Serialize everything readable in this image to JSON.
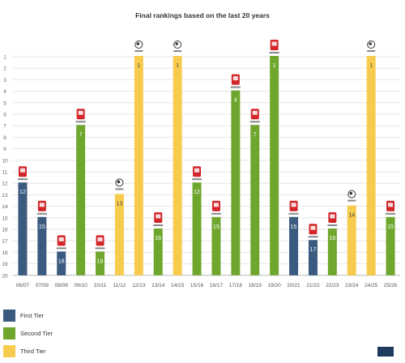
{
  "chart_data": {
    "type": "bar",
    "title": "Final rankings based on the last 20 years",
    "y_ticks": [
      1,
      2,
      3,
      4,
      5,
      6,
      7,
      8,
      9,
      10,
      11,
      12,
      13,
      14,
      15,
      16,
      17,
      18,
      19,
      20
    ],
    "ylim": [
      20,
      0
    ],
    "y_axis_reversed": true,
    "grid": true,
    "legend_position": "bottom-left",
    "tier_colors": {
      "first": "#3a5a80",
      "second": "#6fa72e",
      "third": "#f7cb4d"
    },
    "categories": [
      "06/07",
      "07/08",
      "08/09",
      "09/10",
      "10/11",
      "11/12",
      "12/13",
      "13/14",
      "14/15",
      "15/16",
      "16/17",
      "17/18",
      "18/19",
      "19/20",
      "20/21",
      "21/22",
      "22/23",
      "23/24",
      "24/25",
      "25/26"
    ],
    "values": [
      12,
      15,
      18,
      7,
      18,
      13,
      1,
      16,
      1,
      12,
      15,
      4,
      7,
      1,
      15,
      17,
      16,
      14,
      1,
      15
    ],
    "tiers": [
      "first",
      "first",
      "first",
      "second",
      "second",
      "third",
      "third",
      "second",
      "third",
      "second",
      "second",
      "second",
      "second",
      "second",
      "first",
      "first",
      "second",
      "third",
      "third",
      "second"
    ],
    "badges": [
      "league",
      "league",
      "league",
      "league",
      "league",
      "ball",
      "ball",
      "league",
      "ball",
      "league",
      "league",
      "league",
      "league",
      "league",
      "league",
      "league",
      "league",
      "ball",
      "ball",
      "league"
    ],
    "series": [
      {
        "name": "First Tier",
        "tier": "first"
      },
      {
        "name": "Second Tier",
        "tier": "second"
      },
      {
        "name": "Third Tier",
        "tier": "third"
      }
    ]
  },
  "legend": [
    {
      "label": "First Tier",
      "color": "#3a5a80"
    },
    {
      "label": "Second Tier",
      "color": "#6fa72e"
    },
    {
      "label": "Third Tier",
      "color": "#f7cb4d"
    }
  ],
  "colors": {
    "badge_red": "#d2262a",
    "ball_icon": "#333333",
    "grid": "#e6e6e6",
    "corner": "#1e3a5f"
  }
}
